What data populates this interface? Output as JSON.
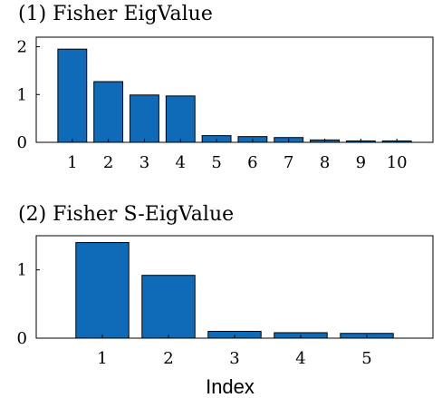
{
  "colors": {
    "bar": "#0F6BB8",
    "axis": "#000000",
    "background": "#ffffff"
  },
  "chart_data": [
    {
      "type": "bar",
      "title": "(1) Fisher EigValue",
      "categories": [
        "1",
        "2",
        "3",
        "4",
        "5",
        "6",
        "7",
        "8",
        "9",
        "10"
      ],
      "values": [
        1.95,
        1.27,
        0.99,
        0.97,
        0.14,
        0.12,
        0.1,
        0.05,
        0.03,
        0.03
      ],
      "ylim": [
        0,
        2.2
      ],
      "yticks": [
        0,
        1,
        2
      ],
      "xlim": [
        0,
        11
      ],
      "xlabel": "",
      "ylabel": "",
      "grid": false
    },
    {
      "type": "bar",
      "title": "(2) Fisher S-EigValue",
      "categories": [
        "1",
        "2",
        "3",
        "4",
        "5"
      ],
      "values": [
        1.4,
        0.92,
        0.1,
        0.08,
        0.07
      ],
      "ylim": [
        0,
        1.5
      ],
      "yticks": [
        0,
        1
      ],
      "xlim": [
        0,
        6
      ],
      "xlabel": "Index",
      "ylabel": "",
      "grid": false
    }
  ]
}
